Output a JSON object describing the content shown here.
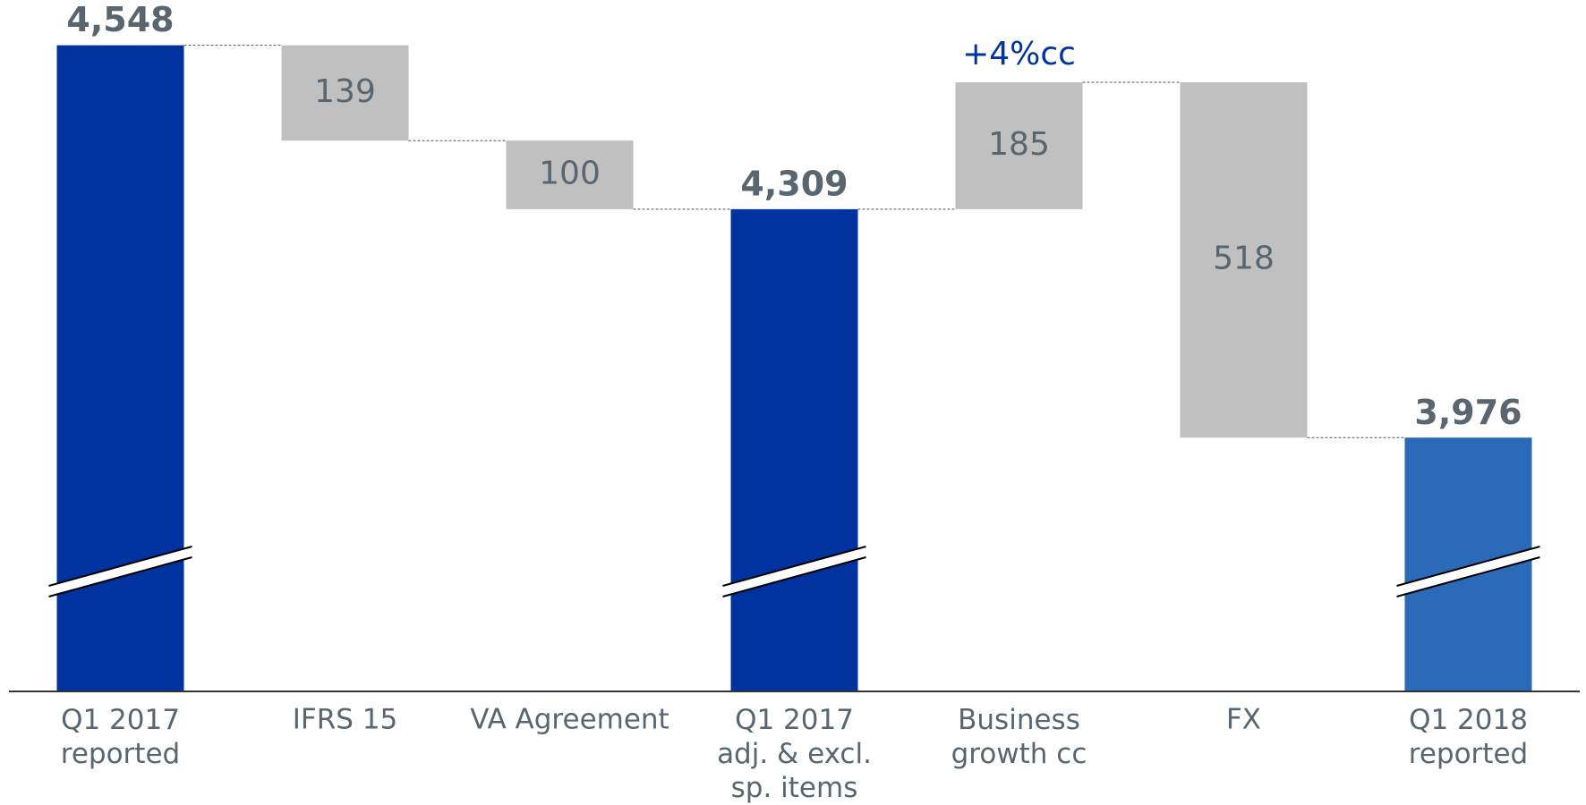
{
  "chart_data": {
    "type": "waterfall",
    "categories": [
      "Q1 2017\nreported",
      "IFRS 15",
      "VA Agreement",
      "Q1 2017\nadj. & excl.\nsp. items",
      "Business\ngrowth cc",
      "FX",
      "Q1 2018\nreported"
    ],
    "values": [
      4548,
      -139,
      -100,
      4309,
      185,
      -518,
      3976
    ],
    "value_labels": [
      "4,548",
      "139",
      "100",
      "4,309",
      "185",
      "518",
      "3,976"
    ],
    "kinds": [
      "total",
      "delta",
      "delta",
      "total",
      "delta",
      "delta",
      "total"
    ],
    "colors": [
      "#0033a0",
      "#c0c0c0",
      "#c0c0c0",
      "#0033a0",
      "#c0c0c0",
      "#c0c0c0",
      "#2a6ab8"
    ],
    "annotations": [
      {
        "text": "+4%cc",
        "category": 4
      }
    ],
    "ylim": [
      3606,
      4614
    ]
  }
}
